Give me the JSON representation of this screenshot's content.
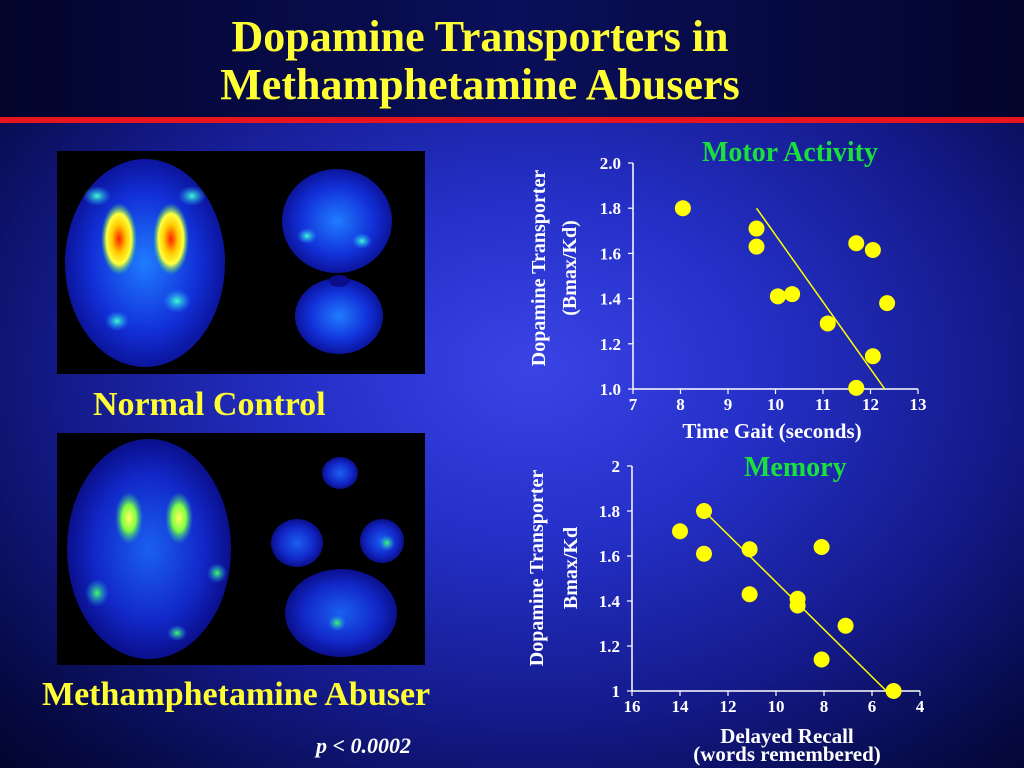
{
  "title": {
    "line1": "Dopamine Transporters in",
    "line2": "Methamphetamine Abusers"
  },
  "images": {
    "normal_caption": "Normal Control",
    "abuser_caption": "Methamphetamine Abuser"
  },
  "p_value": "p < 0.0002",
  "chart_data": [
    {
      "type": "scatter",
      "title": "Motor Activity",
      "xlabel": "Time Gait   (seconds)",
      "ylabel_lines": [
        "Dopamine Transporter",
        "(Bmax/Kd)"
      ],
      "xlim": [
        7,
        13
      ],
      "ylim": [
        1.0,
        2.0
      ],
      "x_ticks": [
        "7",
        "8",
        "9",
        "10",
        "11",
        "12",
        "13"
      ],
      "x_tick_values": [
        7,
        8,
        9,
        10,
        11,
        12,
        13
      ],
      "y_ticks": [
        "1.0",
        "1.2",
        "1.4",
        "1.6",
        "1.8",
        "2.0"
      ],
      "y_tick_values": [
        1.0,
        1.2,
        1.4,
        1.6,
        1.8,
        2.0
      ],
      "x_reversed": false,
      "points": [
        {
          "x": 8.05,
          "y": 1.8
        },
        {
          "x": 9.6,
          "y": 1.71
        },
        {
          "x": 9.6,
          "y": 1.63
        },
        {
          "x": 10.05,
          "y": 1.41
        },
        {
          "x": 10.35,
          "y": 1.42
        },
        {
          "x": 11.1,
          "y": 1.29
        },
        {
          "x": 11.7,
          "y": 1.645
        },
        {
          "x": 12.05,
          "y": 1.615
        },
        {
          "x": 12.35,
          "y": 1.38
        },
        {
          "x": 12.05,
          "y": 1.145
        },
        {
          "x": 11.7,
          "y": 1.005
        }
      ],
      "trendline": {
        "x": [
          9.6,
          12.3
        ],
        "y": [
          1.8,
          1.0
        ]
      },
      "colors": {
        "points": "#ffff00",
        "line": "#ffff00",
        "axis": "#ffffff",
        "title": "#19e03a"
      }
    },
    {
      "type": "scatter",
      "title": "Memory",
      "xlabel_lines": [
        "Delayed Recall",
        "(words remembered)"
      ],
      "ylabel_lines": [
        "Dopamine Transporter",
        "Bmax/Kd"
      ],
      "xlim": [
        16,
        4
      ],
      "ylim": [
        1.0,
        2.0
      ],
      "x_ticks": [
        "16",
        "14",
        "12",
        "10",
        "8",
        "6",
        "4"
      ],
      "x_tick_values": [
        16,
        14,
        12,
        10,
        8,
        6,
        4
      ],
      "y_ticks": [
        "1",
        "1.2",
        "1.4",
        "1.6",
        "1.8",
        "2"
      ],
      "y_tick_values": [
        1.0,
        1.2,
        1.4,
        1.6,
        1.8,
        2.0
      ],
      "x_reversed": true,
      "points": [
        {
          "x": 14.0,
          "y": 1.71
        },
        {
          "x": 13.0,
          "y": 1.8
        },
        {
          "x": 13.0,
          "y": 1.61
        },
        {
          "x": 11.1,
          "y": 1.63
        },
        {
          "x": 11.1,
          "y": 1.43
        },
        {
          "x": 9.1,
          "y": 1.41
        },
        {
          "x": 9.1,
          "y": 1.38
        },
        {
          "x": 8.1,
          "y": 1.64
        },
        {
          "x": 7.1,
          "y": 1.29
        },
        {
          "x": 8.1,
          "y": 1.14
        },
        {
          "x": 5.1,
          "y": 1.0
        }
      ],
      "trendline": {
        "x": [
          13.0,
          5.4
        ],
        "y": [
          1.8,
          1.0
        ]
      },
      "colors": {
        "points": "#ffff00",
        "line": "#ffff00",
        "axis": "#ffffff",
        "title": "#19e03a"
      }
    }
  ]
}
